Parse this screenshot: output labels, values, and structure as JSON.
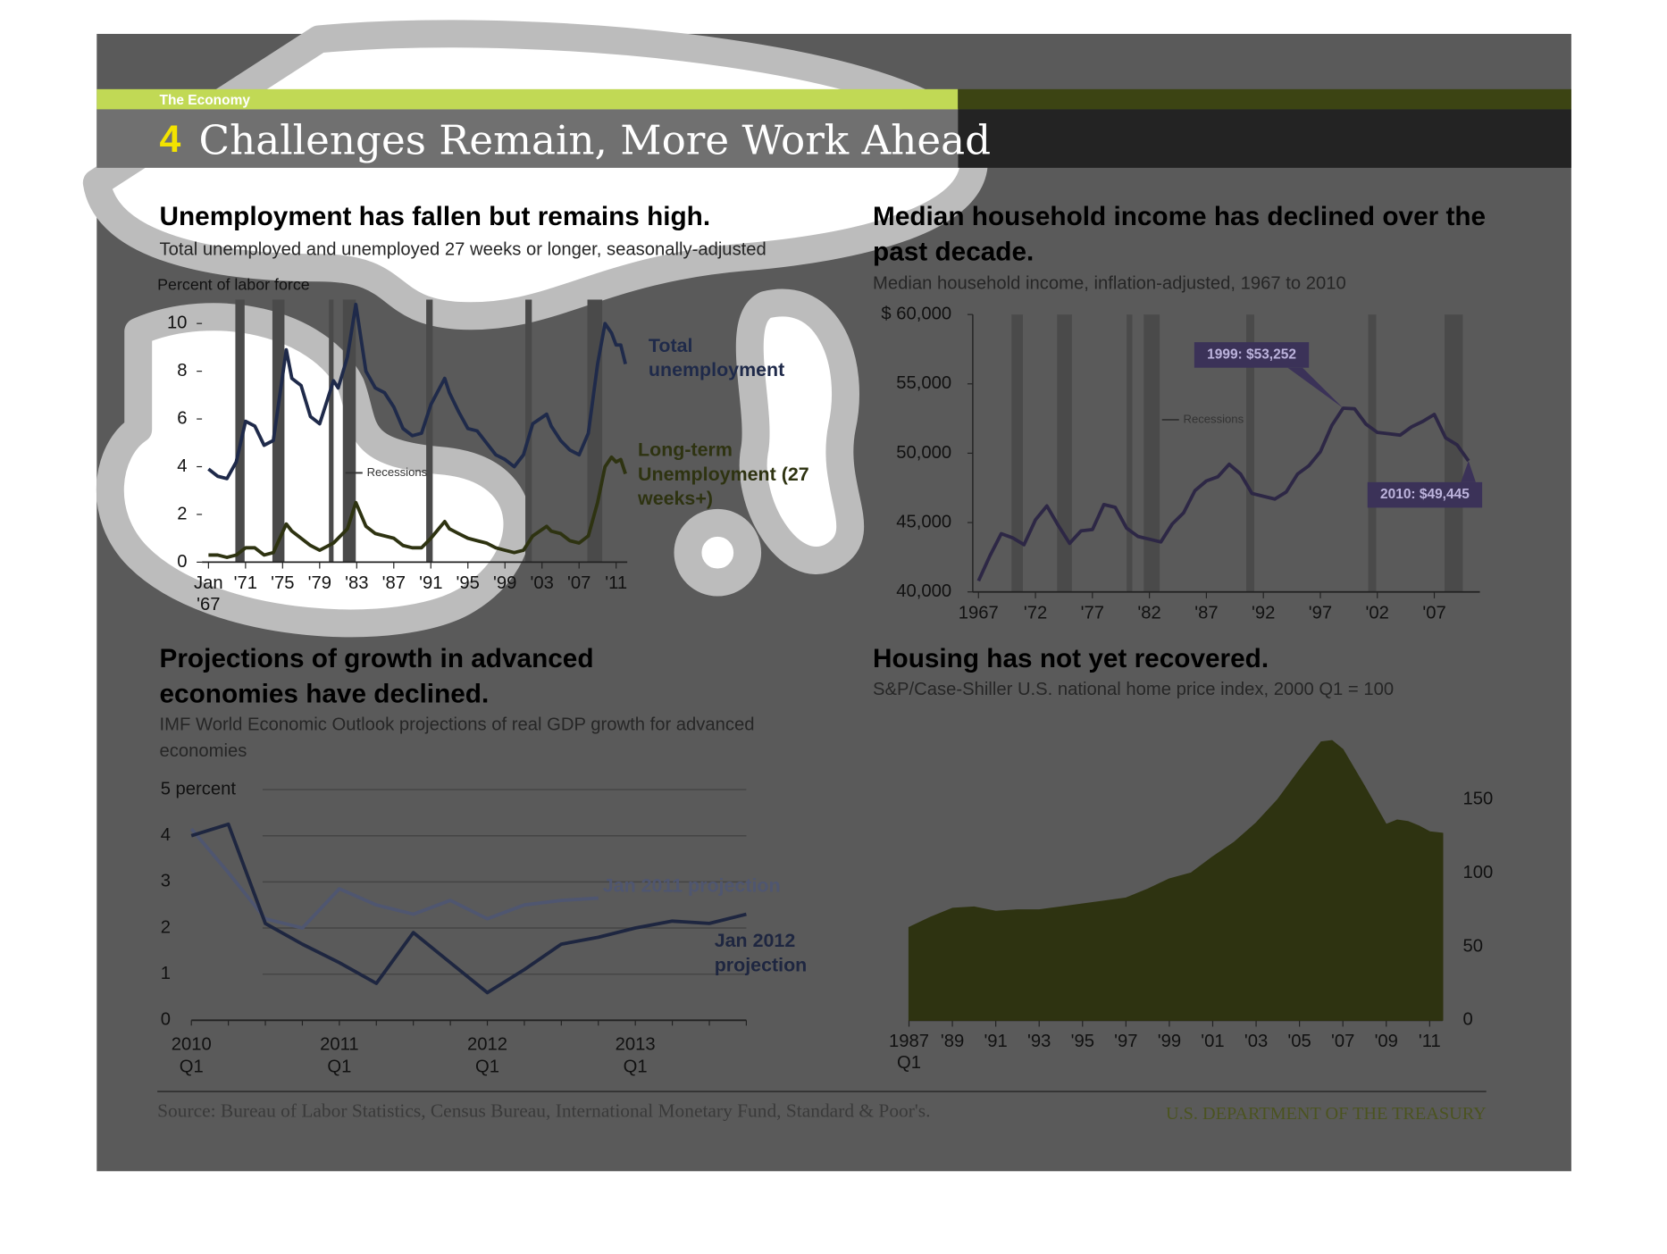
{
  "header": {
    "section": "The Economy",
    "number": "4",
    "title": "Challenges Remain, More Work Ahead"
  },
  "chart_data": [
    {
      "type": "line",
      "title": "Unemployment has fallen but remains high.",
      "subtitle": "Total unemployed and unemployed 27 weeks or longer, seasonally-adjusted",
      "y_label": "Percent of labor force",
      "x": [
        1967,
        1968,
        1969,
        1970,
        1971,
        1972,
        1973,
        1974,
        1975.4,
        1976,
        1977,
        1978,
        1979,
        1980.5,
        1981,
        1982,
        1982.9,
        1984,
        1985,
        1986,
        1987,
        1988,
        1989,
        1990,
        1991,
        1992.5,
        1993,
        1994,
        1995,
        1996,
        1997,
        1998,
        1999,
        2000,
        2001,
        2002,
        2003.5,
        2004,
        2005,
        2006,
        2007,
        2008,
        2009,
        2009.8,
        2010.5,
        2011,
        2011.5,
        2012
      ],
      "xlim": [
        1966.3,
        2012.2
      ],
      "ylim": [
        0,
        11
      ],
      "yticks": [
        0,
        2,
        4,
        6,
        8,
        10
      ],
      "xticks": [
        {
          "value": 1967,
          "label": "Jan '67"
        },
        {
          "value": 1971,
          "label": "'71"
        },
        {
          "value": 1975,
          "label": "'75"
        },
        {
          "value": 1979,
          "label": "'79"
        },
        {
          "value": 1983,
          "label": "'83"
        },
        {
          "value": 1987,
          "label": "'87"
        },
        {
          "value": 1991,
          "label": "'91"
        },
        {
          "value": 1995,
          "label": "'95"
        },
        {
          "value": 1999,
          "label": "'99"
        },
        {
          "value": 2003,
          "label": "'03"
        },
        {
          "value": 2007,
          "label": "'07"
        },
        {
          "value": 2011,
          "label": "'11"
        }
      ],
      "recessions": [
        [
          1969.9,
          1970.9
        ],
        [
          1973.9,
          1975.2
        ],
        [
          1980,
          1980.5
        ],
        [
          1981.5,
          1982.9
        ],
        [
          1990.5,
          1991.2
        ],
        [
          2001.2,
          2001.9
        ],
        [
          2007.9,
          2009.5
        ]
      ],
      "recession_label": "Recessions",
      "recession_color": "#4a4a4a",
      "series": [
        {
          "name": "Total unemployment",
          "color": "#1f2a4a",
          "values": [
            3.9,
            3.6,
            3.5,
            4.2,
            5.9,
            5.7,
            4.9,
            5.1,
            8.9,
            7.7,
            7.4,
            6.1,
            5.8,
            7.6,
            7.3,
            8.6,
            10.8,
            8.0,
            7.3,
            7.1,
            6.5,
            5.6,
            5.3,
            5.4,
            6.6,
            7.7,
            7.1,
            6.3,
            5.6,
            5.5,
            5.0,
            4.5,
            4.3,
            4.0,
            4.5,
            5.8,
            6.2,
            5.7,
            5.1,
            4.7,
            4.5,
            5.4,
            8.3,
            10.0,
            9.6,
            9.1,
            9.1,
            8.3
          ]
        },
        {
          "name": "Long-term Unemployment (27 weeks+)",
          "color": "#2e3311",
          "values": [
            0.3,
            0.3,
            0.2,
            0.3,
            0.6,
            0.6,
            0.3,
            0.4,
            1.6,
            1.3,
            1.0,
            0.7,
            0.5,
            0.8,
            1.0,
            1.4,
            2.5,
            1.5,
            1.2,
            1.1,
            1.0,
            0.7,
            0.6,
            0.6,
            1.0,
            1.7,
            1.4,
            1.2,
            1.0,
            0.9,
            0.8,
            0.6,
            0.5,
            0.4,
            0.5,
            1.1,
            1.5,
            1.3,
            1.2,
            0.9,
            0.8,
            1.1,
            2.5,
            4.0,
            4.4,
            4.2,
            4.3,
            3.7
          ]
        }
      ]
    },
    {
      "type": "line",
      "title": "Median household income has declined over the past decade.",
      "subtitle": "Median household income, inflation-adjusted, 1967 to 2010",
      "x": [
        1967,
        1968,
        1969,
        1970,
        1971,
        1972,
        1973,
        1974,
        1975,
        1976,
        1977,
        1978,
        1979,
        1980,
        1981,
        1982,
        1983,
        1984,
        1985,
        1986,
        1987,
        1988,
        1989,
        1990,
        1991,
        1992,
        1993,
        1994,
        1995,
        1996,
        1997,
        1998,
        1999,
        2000,
        2001,
        2002,
        2003,
        2004,
        2005,
        2006,
        2007,
        2008,
        2009,
        2010
      ],
      "values": [
        40800,
        42600,
        44200,
        43900,
        43400,
        45200,
        46200,
        44800,
        43500,
        44400,
        44500,
        46300,
        46100,
        44600,
        44000,
        43800,
        43600,
        44900,
        45700,
        47300,
        48000,
        48300,
        49200,
        48500,
        47100,
        46900,
        46700,
        47200,
        48500,
        49100,
        50100,
        52000,
        53252,
        53200,
        52100,
        51500,
        51400,
        51300,
        51900,
        52300,
        52800,
        51100,
        50600,
        49445
      ],
      "value_labels": [
        null,
        null,
        null,
        null,
        null,
        null,
        null,
        null,
        null,
        null,
        null,
        null,
        null,
        null,
        null,
        null,
        null,
        null,
        null,
        null,
        null,
        null,
        null,
        null,
        null,
        null,
        null,
        null,
        null,
        null,
        null,
        null,
        "1999: $53,252",
        null,
        null,
        null,
        null,
        null,
        null,
        null,
        null,
        null,
        null,
        "2010: $49,445"
      ],
      "color": "#2d2745",
      "label_color": "#3b3258",
      "xlim": [
        1966.5,
        2011
      ],
      "ylim": [
        40000,
        60000
      ],
      "yticks": [
        {
          "value": 40000,
          "label": "40,000"
        },
        {
          "value": 45000,
          "label": "45,000"
        },
        {
          "value": 50000,
          "label": "50,000"
        },
        {
          "value": 55000,
          "label": "55,000"
        },
        {
          "value": 60000,
          "label": "$ 60,000"
        }
      ],
      "xticks": [
        1967,
        {
          "value": 1972,
          "label": "'72"
        },
        {
          "value": 1977,
          "label": "'77"
        },
        {
          "value": 1982,
          "label": "'82"
        },
        {
          "value": 1987,
          "label": "'87"
        },
        {
          "value": 1992,
          "label": "'92"
        },
        {
          "value": 1997,
          "label": "'97"
        },
        {
          "value": 2002,
          "label": "'02"
        },
        {
          "value": 2007,
          "label": "'07"
        }
      ],
      "recessions": [
        [
          1969.9,
          1970.9
        ],
        [
          1973.9,
          1975.2
        ],
        [
          1980,
          1980.5
        ],
        [
          1981.5,
          1982.9
        ],
        [
          1990.5,
          1991.2
        ],
        [
          2001.2,
          2001.9
        ],
        [
          2007.9,
          2009.5
        ]
      ],
      "recession_label": "Recessions",
      "recession_color": "#4a4a4a"
    },
    {
      "type": "line",
      "title": "Projections of growth in advanced economies have declined.",
      "subtitle": "IMF World Economic Outlook  projections of real GDP growth for advanced economies",
      "categories": [
        "2010 Q1",
        null,
        null,
        null,
        "2011 Q1",
        null,
        null,
        null,
        "2012 Q1",
        null,
        null,
        null,
        "2013 Q1",
        null,
        null,
        null
      ],
      "ylim": [
        0,
        5
      ],
      "yticks": [
        0,
        1,
        2,
        3,
        4,
        {
          "value": 5,
          "label": "5 percent"
        }
      ],
      "grid": true,
      "series": [
        {
          "name": "Jan 2011 projection",
          "color": "#4f5670",
          "values": [
            4.15,
            3.2,
            2.2,
            2.0,
            2.85,
            2.5,
            2.3,
            2.6,
            2.2,
            2.5,
            2.6,
            2.65,
            null,
            null,
            null,
            null
          ]
        },
        {
          "name": "Jan 2012 projection",
          "color": "#1e2640",
          "values": [
            4.0,
            4.25,
            2.1,
            1.65,
            1.25,
            0.8,
            1.9,
            1.25,
            0.6,
            1.1,
            1.65,
            1.8,
            2.0,
            2.15,
            2.1,
            2.3
          ]
        }
      ]
    },
    {
      "type": "area",
      "title": "Housing has not yet recovered.",
      "subtitle": "S&P/Case-Shiller U.S. national home price index, 2000 Q1 = 100",
      "x": [
        1987,
        1988,
        1989,
        1990,
        1991,
        1992,
        1993,
        1994,
        1995,
        1996,
        1997,
        1998,
        1999,
        2000,
        2001,
        2002,
        2003,
        2004,
        2005,
        2006,
        2006.5,
        2007,
        2008,
        2009,
        2009.5,
        2010,
        2010.5,
        2011,
        2011.6
      ],
      "values": [
        63,
        70,
        76,
        77,
        74,
        75,
        75,
        77,
        79,
        81,
        83,
        89,
        96,
        100,
        111,
        121,
        134,
        150,
        170,
        189,
        190,
        184,
        159,
        133,
        136,
        135,
        132,
        128,
        127
      ],
      "color": "#2e3311",
      "xlim": [
        1987,
        2011.6
      ],
      "ylim": [
        0,
        200
      ],
      "yticks": [
        0,
        50,
        100,
        150
      ],
      "xticks": [
        {
          "value": 1987,
          "label": "1987 Q1"
        },
        {
          "value": 1989,
          "label": "'89"
        },
        {
          "value": 1991,
          "label": "'91"
        },
        {
          "value": 1993,
          "label": "'93"
        },
        {
          "value": 1995,
          "label": "'95"
        },
        {
          "value": 1997,
          "label": "'97"
        },
        {
          "value": 1999,
          "label": "'99"
        },
        {
          "value": 2001,
          "label": "'01"
        },
        {
          "value": 2003,
          "label": "'03"
        },
        {
          "value": 2005,
          "label": "'05"
        },
        {
          "value": 2007,
          "label": "'07"
        },
        {
          "value": 2009,
          "label": "'09"
        },
        {
          "value": 2011,
          "label": "'11"
        }
      ]
    }
  ],
  "footer": {
    "source": "Source: Bureau of Labor Statistics, Census Bureau, International Monetary Fund, Standard & Poor's.",
    "agency": "U.S. DEPARTMENT OF THE TREASURY"
  }
}
